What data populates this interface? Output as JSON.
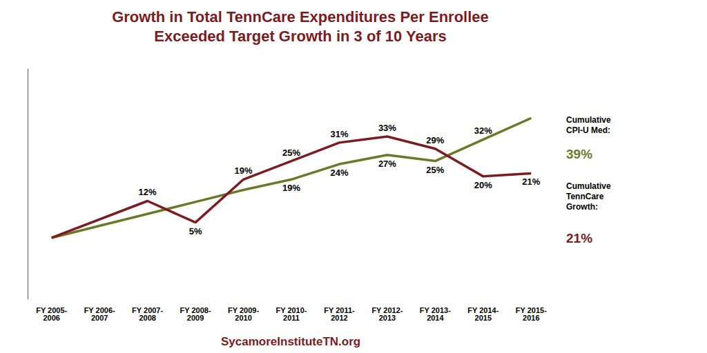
{
  "chart_data": {
    "type": "line",
    "title": "Growth in Total TennCare Expenditures Per Enrollee",
    "subtitle": "Exceeded Target Growth in 3 of 10 Years",
    "categories": [
      "FY 2005-\n2006",
      "FY 2006-\n2007",
      "FY 2007-\n2008",
      "FY 2008-\n2009",
      "FY 2009-\n2010",
      "FY 2010-\n2011",
      "FY 2011-\n2012",
      "FY 2012-\n2013",
      "FY 2013-\n2014",
      "FY 2014-\n2015",
      "FY 2015-\n2016"
    ],
    "series": [
      {
        "color": "#7B1C22",
        "values": [
          0,
          null,
          12,
          5,
          19,
          25,
          31,
          33,
          29,
          20,
          21
        ],
        "value_labels": [
          null,
          null,
          "12%",
          "5%",
          "19%",
          "25%",
          "31%",
          "33%",
          "29%",
          "20%",
          "21%"
        ]
      },
      {
        "color": "#6B7A2A",
        "values": [
          0,
          3.9,
          7.8,
          11.7,
          15.6,
          19,
          24,
          27,
          25,
          32,
          39
        ],
        "value_labels": [
          null,
          null,
          null,
          null,
          null,
          "19%",
          "24%",
          "27%",
          "25%",
          "32%",
          null
        ]
      }
    ],
    "ylim": [
      -20,
      55
    ],
    "grid": false,
    "tick_labels": "x",
    "data_labels": true,
    "annotations": [
      {
        "text": "Cumulative\nCPI-U Med:"
      },
      {
        "text": "39%",
        "color": "#6B7A2A"
      },
      {
        "text": "Cumulative\nTennCare\nGrowth:"
      },
      {
        "text": "21%",
        "color": "#7B1C22"
      },
      {
        "text": "SycamoreInstituteTN.org",
        "color": "#7B1C22"
      }
    ]
  }
}
